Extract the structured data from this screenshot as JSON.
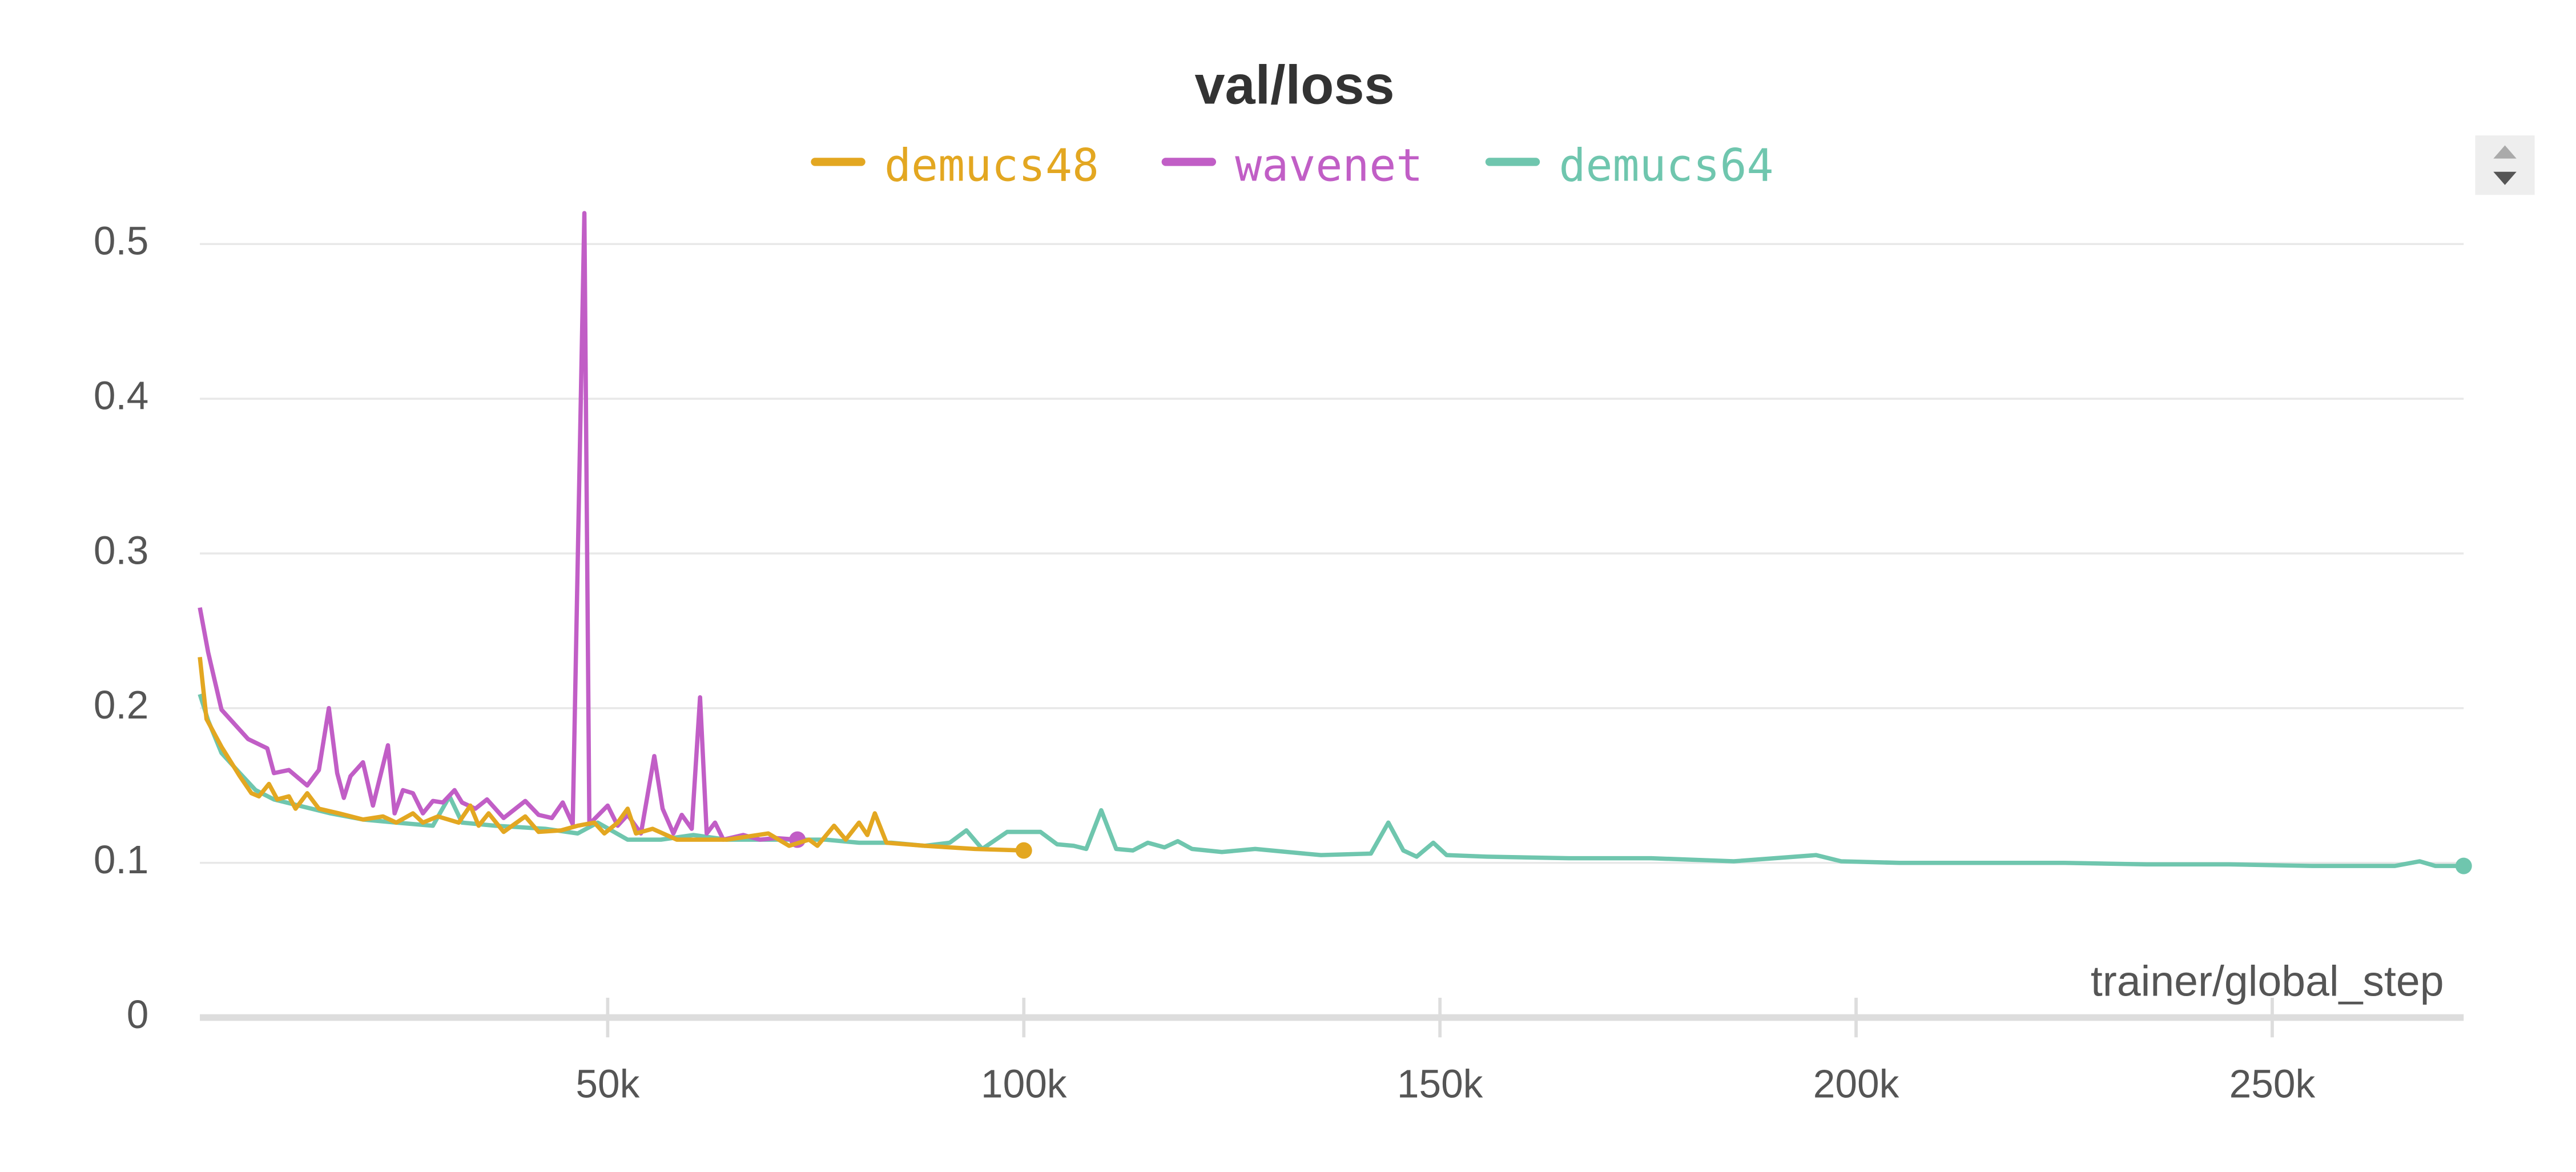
{
  "chart_data": {
    "type": "line",
    "title": "val/loss",
    "xlabel": "trainer/global_step",
    "xlim": [
      1000,
      273000
    ],
    "xticks": [
      {
        "value": 50000,
        "label": "50k"
      },
      {
        "value": 100000,
        "label": "100k"
      },
      {
        "value": 150000,
        "label": "150k"
      },
      {
        "value": 200000,
        "label": "200k"
      },
      {
        "value": 250000,
        "label": "250k"
      }
    ],
    "ylim": [
      0,
      0.52
    ],
    "yticks": [
      0,
      0.1,
      0.2,
      0.3,
      0.4,
      0.5
    ],
    "grid": true,
    "series": [
      {
        "name": "demucs48",
        "color": "#e3a721",
        "x": [
          1000,
          1800,
          3600,
          5800,
          7200,
          8100,
          9300,
          10300,
          11700,
          12500,
          13900,
          15300,
          17700,
          20600,
          23000,
          24600,
          26600,
          27800,
          29600,
          32100,
          33500,
          34500,
          35700,
          37500,
          40100,
          41700,
          44400,
          46400,
          48400,
          49600,
          51200,
          52400,
          53400,
          55400,
          58300,
          61300,
          64300,
          69300,
          71800,
          74200,
          75200,
          77200,
          78600,
          80200,
          81200,
          82100,
          83500,
          88100,
          94100,
          100000
        ],
        "values": [
          0.233,
          0.193,
          0.175,
          0.156,
          0.145,
          0.143,
          0.151,
          0.141,
          0.143,
          0.135,
          0.145,
          0.135,
          0.132,
          0.128,
          0.13,
          0.126,
          0.132,
          0.126,
          0.13,
          0.126,
          0.137,
          0.124,
          0.132,
          0.12,
          0.13,
          0.12,
          0.121,
          0.124,
          0.126,
          0.119,
          0.126,
          0.135,
          0.119,
          0.122,
          0.115,
          0.115,
          0.115,
          0.119,
          0.111,
          0.115,
          0.111,
          0.124,
          0.115,
          0.126,
          0.118,
          0.132,
          0.113,
          0.111,
          0.109,
          0.108
        ]
      },
      {
        "name": "wavenet",
        "color": "#c15ec6",
        "x": [
          1000,
          2000,
          3600,
          6800,
          9100,
          9900,
          11700,
          13900,
          15300,
          16500,
          17500,
          18300,
          19100,
          20600,
          21800,
          23600,
          24400,
          25400,
          26600,
          27800,
          29000,
          30200,
          31600,
          32500,
          34100,
          35500,
          37500,
          40100,
          41700,
          43300,
          44600,
          45800,
          47200,
          47800,
          50000,
          51200,
          52400,
          54000,
          55600,
          56600,
          57900,
          58900,
          60100,
          61100,
          61900,
          62900,
          63900,
          66300,
          68300,
          70200,
          72800
        ],
        "values": [
          0.265,
          0.236,
          0.199,
          0.18,
          0.174,
          0.158,
          0.16,
          0.15,
          0.16,
          0.2,
          0.158,
          0.142,
          0.156,
          0.165,
          0.137,
          0.176,
          0.132,
          0.147,
          0.145,
          0.132,
          0.14,
          0.139,
          0.147,
          0.139,
          0.135,
          0.141,
          0.129,
          0.14,
          0.131,
          0.129,
          0.139,
          0.125,
          0.52,
          0.125,
          0.137,
          0.124,
          0.131,
          0.119,
          0.169,
          0.135,
          0.119,
          0.131,
          0.122,
          0.207,
          0.119,
          0.126,
          0.115,
          0.118,
          0.115,
          0.116,
          0.115
        ]
      },
      {
        "name": "demucs64",
        "color": "#6fc6ae",
        "x": [
          1000,
          2000,
          3600,
          5800,
          7700,
          9900,
          12900,
          16700,
          20600,
          24600,
          29000,
          31000,
          32500,
          36500,
          42500,
          46400,
          48800,
          52400,
          56400,
          60300,
          64300,
          70200,
          76200,
          80200,
          84100,
          88100,
          91100,
          93100,
          95000,
          98000,
          102000,
          104000,
          106000,
          107500,
          109300,
          111100,
          113100,
          114900,
          116900,
          118500,
          120200,
          123800,
          127800,
          131700,
          135700,
          141700,
          143800,
          145600,
          147200,
          149200,
          150800,
          155600,
          165500,
          175400,
          185300,
          195200,
          198200,
          205200,
          215100,
          225000,
          234900,
          244800,
          254800,
          264700,
          267700,
          269600,
          273000
        ],
        "values": [
          0.209,
          0.192,
          0.171,
          0.158,
          0.147,
          0.141,
          0.137,
          0.132,
          0.128,
          0.126,
          0.124,
          0.143,
          0.126,
          0.124,
          0.122,
          0.119,
          0.126,
          0.115,
          0.115,
          0.118,
          0.115,
          0.115,
          0.115,
          0.113,
          0.113,
          0.111,
          0.113,
          0.121,
          0.109,
          0.12,
          0.12,
          0.112,
          0.111,
          0.109,
          0.134,
          0.109,
          0.108,
          0.113,
          0.11,
          0.114,
          0.109,
          0.107,
          0.109,
          0.107,
          0.105,
          0.106,
          0.126,
          0.108,
          0.104,
          0.113,
          0.105,
          0.104,
          0.103,
          0.103,
          0.101,
          0.105,
          0.101,
          0.1,
          0.1,
          0.1,
          0.099,
          0.099,
          0.098,
          0.098,
          0.101,
          0.098,
          0.098
        ]
      }
    ]
  }
}
